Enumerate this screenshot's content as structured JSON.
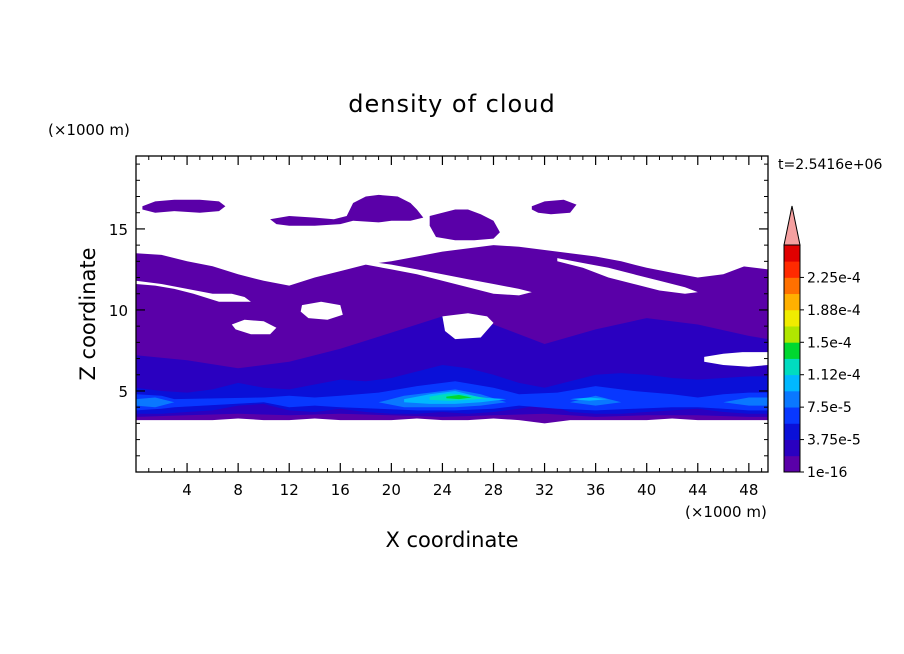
{
  "chart_data": {
    "type": "heatmap",
    "title": "density of cloud",
    "xlabel": "X coordinate",
    "ylabel": "Z coordinate",
    "x_unit": "(×1000 m)",
    "y_unit": "(×1000 m)",
    "time_label": "t=2.5416e+06",
    "xlim": [
      0,
      49.5
    ],
    "ylim": [
      0,
      19.5
    ],
    "x_ticks": [
      4,
      8,
      12,
      16,
      20,
      24,
      28,
      32,
      36,
      40,
      44,
      48
    ],
    "y_ticks": [
      5,
      10,
      15
    ],
    "colorbar": {
      "levels": [
        1e-16,
        1.875e-05,
        3.75e-05,
        5.625e-05,
        7.5e-05,
        9.375e-05,
        0.0001125,
        0.00013125,
        0.00015,
        0.00016875,
        0.0001875,
        0.00020625,
        0.000225,
        0.00024375
      ],
      "labels": [
        "2.25e-4",
        "1.88e-4",
        "1.5e-4",
        "1.12e-4",
        "7.5e-5",
        "3.75e-5",
        "1e-16"
      ],
      "colors": [
        "#5a00a8",
        "#2a00c0",
        "#0a10d8",
        "#0838ff",
        "#0a78ff",
        "#00b8ff",
        "#00dcc0",
        "#00d830",
        "#b0e600",
        "#f0ec00",
        "#ffb000",
        "#ff7000",
        "#ff2a00",
        "#e00000"
      ],
      "over_color": "#f5a0a0"
    },
    "cloud_regions": [
      {
        "level": 0,
        "x": [
          0,
          2,
          4,
          6,
          8,
          10,
          12,
          14,
          16,
          18,
          20,
          22,
          24,
          26,
          28,
          30,
          32,
          34,
          36,
          38,
          40,
          42,
          44,
          46,
          48,
          49.5
        ],
        "z_bottom": [
          3.2,
          3.2,
          3.2,
          3.2,
          3.3,
          3.2,
          3.2,
          3.3,
          3.2,
          3.2,
          3.2,
          3.3,
          3.2,
          3.2,
          3.3,
          3.2,
          3.0,
          3.2,
          3.2,
          3.2,
          3.2,
          3.3,
          3.2,
          3.2,
          3.2,
          3.2
        ],
        "z_top": [
          13.5,
          13.4,
          13.0,
          12.7,
          12.2,
          11.8,
          11.5,
          12.0,
          12.4,
          12.8,
          13.0,
          13.3,
          13.6,
          13.8,
          14.0,
          13.9,
          13.7,
          13.5,
          13.3,
          13.0,
          12.6,
          12.3,
          12.0,
          12.2,
          12.8,
          13.2
        ]
      },
      {
        "level": 1,
        "x": [
          0,
          4,
          8,
          12,
          16,
          20,
          24,
          28,
          32,
          36,
          40,
          44,
          48,
          49.5
        ],
        "z_bottom": [
          3.4,
          3.5,
          3.6,
          3.5,
          3.6,
          3.5,
          3.4,
          3.5,
          3.6,
          3.4,
          3.5,
          3.5,
          3.4,
          3.4
        ],
        "z_top": [
          7.2,
          6.9,
          6.4,
          6.8,
          7.6,
          8.6,
          9.6,
          9.1,
          7.9,
          8.8,
          9.5,
          9.1,
          8.4,
          8.2
        ]
      },
      {
        "level": 2,
        "x": [
          0,
          2,
          4,
          6,
          8,
          10,
          12,
          14,
          16,
          18,
          20,
          22,
          24,
          26,
          28,
          30,
          32,
          34,
          36,
          38,
          40,
          42,
          44,
          46,
          48,
          49.5
        ],
        "z_bottom": [
          3.6,
          3.6,
          3.7,
          3.8,
          4.1,
          4.2,
          3.8,
          3.7,
          3.9,
          3.7,
          3.6,
          3.6,
          3.7,
          3.6,
          3.7,
          3.9,
          4.2,
          3.7,
          3.6,
          3.6,
          3.7,
          3.8,
          3.9,
          3.7,
          3.6,
          3.6
        ],
        "z_top": [
          5.2,
          5.0,
          4.9,
          5.1,
          5.5,
          5.2,
          5.1,
          5.4,
          5.7,
          5.6,
          5.8,
          6.2,
          6.6,
          6.4,
          6.0,
          5.5,
          5.2,
          5.6,
          6.0,
          6.1,
          6.0,
          5.8,
          5.7,
          5.8,
          5.9,
          5.9
        ]
      },
      {
        "level": 3,
        "x": [
          0,
          2,
          3,
          10,
          12,
          14,
          16,
          19,
          22,
          25,
          28,
          30,
          33,
          36,
          39,
          42,
          44,
          46,
          48,
          49.5
        ],
        "z_bottom": [
          3.8,
          3.9,
          4.0,
          4.3,
          4.0,
          4.1,
          4.0,
          3.9,
          3.8,
          3.8,
          3.9,
          4.1,
          3.9,
          3.8,
          3.9,
          4.0,
          4.0,
          3.9,
          3.8,
          3.8
        ],
        "z_top": [
          4.8,
          4.7,
          4.5,
          4.6,
          4.7,
          4.6,
          4.7,
          4.9,
          5.3,
          5.6,
          5.2,
          4.8,
          4.9,
          5.3,
          5.0,
          4.8,
          4.6,
          4.8,
          4.9,
          4.9
        ]
      },
      {
        "level": 4,
        "x": [
          0,
          1.5,
          3,
          19,
          21,
          23,
          25,
          27,
          29,
          34,
          36,
          38,
          46,
          48,
          49.5
        ],
        "z_bottom": [
          4.1,
          4.0,
          4.3,
          4.3,
          4.0,
          4.0,
          4.0,
          4.1,
          4.3,
          4.3,
          4.1,
          4.3,
          4.3,
          4.1,
          4.1
        ],
        "z_top": [
          4.5,
          4.6,
          4.3,
          4.3,
          4.7,
          4.9,
          5.1,
          4.8,
          4.3,
          4.3,
          4.7,
          4.3,
          4.3,
          4.6,
          4.6
        ]
      },
      {
        "level": 5,
        "x": [
          21,
          23,
          25,
          27,
          29,
          34,
          35.5,
          37
        ],
        "z_bottom": [
          4.3,
          4.2,
          4.2,
          4.3,
          4.5,
          4.5,
          4.4,
          4.5
        ],
        "z_top": [
          4.5,
          4.8,
          5.0,
          4.6,
          4.5,
          4.5,
          4.6,
          4.5
        ]
      },
      {
        "level": 6,
        "x": [
          23,
          24.5,
          26,
          27.5
        ],
        "z_bottom": [
          4.45,
          4.4,
          4.45,
          4.55
        ],
        "z_top": [
          4.65,
          4.85,
          4.75,
          4.55
        ]
      },
      {
        "level": 7,
        "x": [
          24.3,
          25.3,
          26.3
        ],
        "z_bottom": [
          4.55,
          4.5,
          4.6
        ],
        "z_top": [
          4.65,
          4.75,
          4.6
        ]
      }
    ],
    "upper_cloud_patches": [
      {
        "level": 0,
        "x": [
          0.5,
          1.5,
          3,
          5,
          6.5,
          7,
          6.5,
          5,
          3,
          1.5,
          0.5
        ],
        "z": [
          16.4,
          16.7,
          16.8,
          16.8,
          16.7,
          16.4,
          16.1,
          16.0,
          16.1,
          16.0,
          16.2
        ]
      },
      {
        "level": 0,
        "x": [
          10.5,
          12,
          14,
          15.5,
          16.5,
          17,
          18,
          19,
          20.5,
          21.5,
          22,
          22.5,
          21.5,
          20,
          19,
          17,
          16,
          14,
          12,
          11,
          10.5
        ],
        "z": [
          15.6,
          15.8,
          15.7,
          15.6,
          15.8,
          16.6,
          17.0,
          17.1,
          17.0,
          16.6,
          16.2,
          15.7,
          15.5,
          15.5,
          15.4,
          15.5,
          15.3,
          15.2,
          15.2,
          15.3,
          15.6
        ]
      },
      {
        "level": 0,
        "x": [
          23,
          24,
          25,
          26,
          27,
          28,
          28.5,
          28,
          26.5,
          25,
          23.5,
          23
        ],
        "z": [
          15.8,
          16.0,
          16.2,
          16.2,
          15.9,
          15.5,
          14.8,
          14.4,
          14.3,
          14.3,
          14.5,
          15.2
        ]
      },
      {
        "level": 0,
        "x": [
          31,
          32,
          33.5,
          34.5,
          34,
          32.5,
          31.5,
          31
        ],
        "z": [
          16.4,
          16.7,
          16.8,
          16.5,
          16.0,
          15.9,
          16.0,
          16.2
        ]
      }
    ],
    "clear_holes": [
      {
        "x": [
          0,
          2,
          4,
          6,
          7.5,
          8.5,
          9,
          8,
          6.5,
          4.5,
          3,
          1.5,
          0
        ],
        "z": [
          11.8,
          11.6,
          11.3,
          11.0,
          11.0,
          10.8,
          10.5,
          10.5,
          10.5,
          11.0,
          11.3,
          11.5,
          11.6
        ]
      },
      {
        "x": [
          18,
          20,
          22,
          24,
          26,
          28,
          30,
          31,
          30,
          28,
          26,
          24,
          22,
          20,
          18
        ],
        "z": [
          13.0,
          12.8,
          12.5,
          12.2,
          11.9,
          11.6,
          11.3,
          11.1,
          10.9,
          11.0,
          11.4,
          11.8,
          12.2,
          12.5,
          12.8
        ]
      },
      {
        "x": [
          33,
          35,
          37,
          39,
          41,
          43,
          44,
          43,
          41,
          39,
          37,
          35,
          33
        ],
        "z": [
          13.2,
          12.9,
          12.6,
          12.2,
          11.8,
          11.4,
          11.1,
          11.0,
          11.2,
          11.6,
          12.0,
          12.6,
          13.0
        ]
      },
      {
        "x": [
          7.5,
          8.5,
          10,
          11,
          10.5,
          9,
          7.8
        ],
        "z": [
          9.1,
          9.4,
          9.3,
          8.9,
          8.5,
          8.5,
          8.8
        ]
      },
      {
        "x": [
          13,
          14.5,
          16,
          16.2,
          15,
          13.5,
          12.9
        ],
        "z": [
          10.3,
          10.5,
          10.3,
          9.7,
          9.4,
          9.5,
          9.9
        ]
      },
      {
        "x": [
          24,
          26,
          27.5,
          28,
          27,
          25,
          24.2
        ],
        "z": [
          9.6,
          9.8,
          9.6,
          9.2,
          8.3,
          8.2,
          8.7
        ]
      },
      {
        "x": [
          44.5,
          46,
          47.5,
          49.5,
          49.5,
          48,
          46,
          44.5
        ],
        "z": [
          7.1,
          7.3,
          7.4,
          7.4,
          6.6,
          6.5,
          6.6,
          6.8
        ]
      },
      {
        "x": [
          40.5,
          42,
          43,
          42.5,
          41,
          40.5
        ],
        "z": [
          14.9,
          15.1,
          14.9,
          14.4,
          14.3,
          14.6
        ]
      },
      {
        "x": [
          46.5,
          48.5,
          49.5,
          49.5,
          47.5,
          46.5
        ],
        "z": [
          13.8,
          14.0,
          14.0,
          12.5,
          12.7,
          13.2
        ]
      }
    ]
  }
}
